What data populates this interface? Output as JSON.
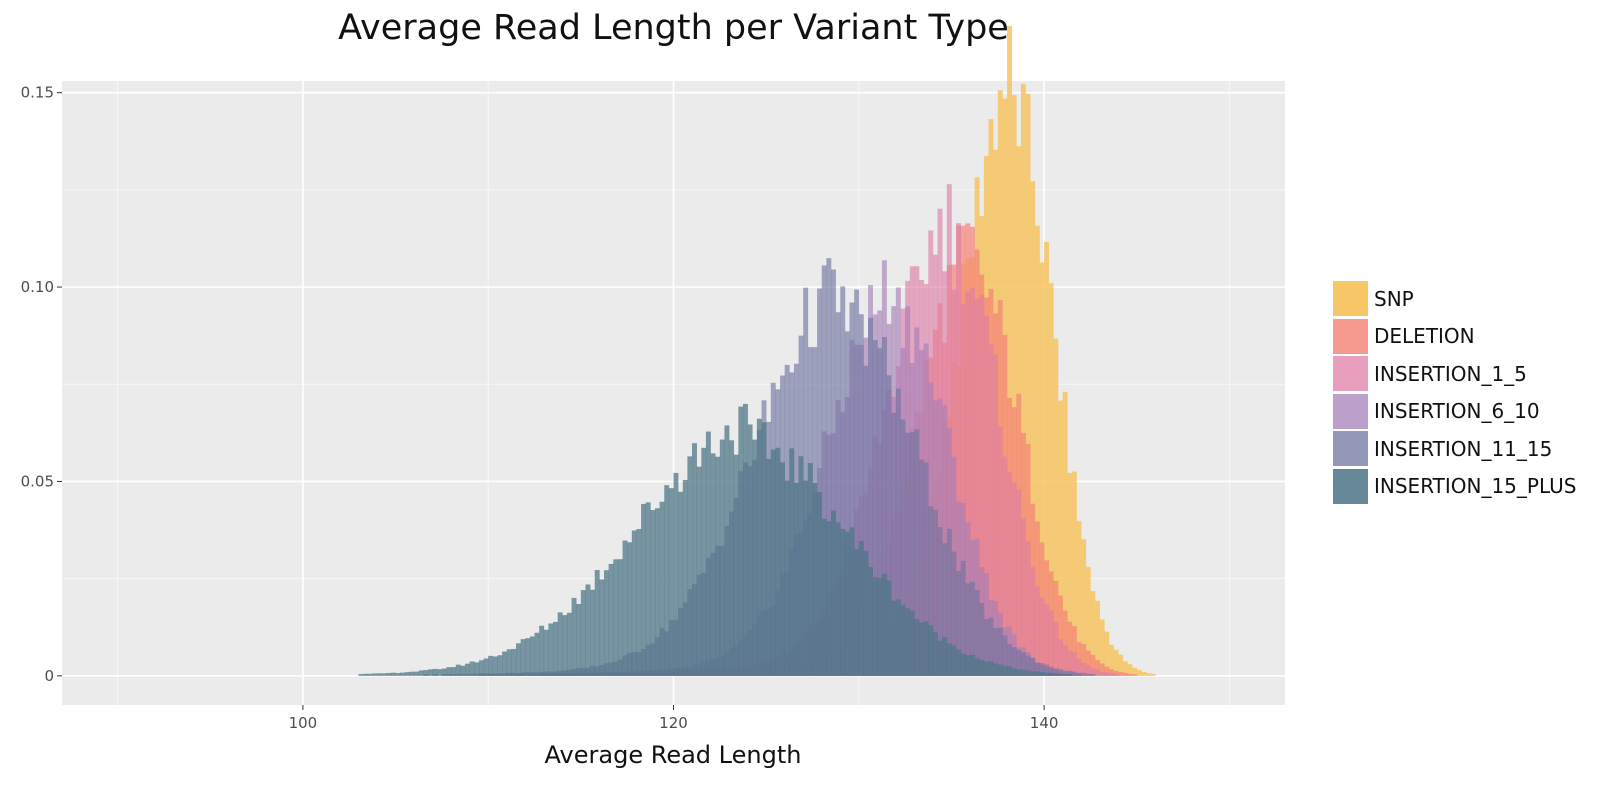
{
  "chart_data": {
    "type": "histogram",
    "title": "Average Read Length per Variant Type",
    "xlabel": "Average Read Length",
    "ylabel": "",
    "xlim": [
      87,
      153
    ],
    "ylim": [
      -0.0075,
      0.153
    ],
    "x_ticks": [
      100,
      120,
      140
    ],
    "x_tick_labels": [
      "100",
      "120",
      "140"
    ],
    "y_ticks": [
      0,
      0.05,
      0.1,
      0.15
    ],
    "y_tick_labels": [
      "0",
      "0.05",
      "0.10",
      "0.15"
    ],
    "grid": true,
    "legend_position": "right",
    "background": "#ebebeb",
    "bin_width": 0.25,
    "series": [
      {
        "name": "SNP",
        "color": "#f6c462",
        "opacity": 0.85,
        "peak_x": 138.3,
        "peak_y": 0.145,
        "sd_left": 2.7,
        "sd_right": 2.25,
        "tail_start": 120
      },
      {
        "name": "DELETION",
        "color": "#f48579",
        "opacity": 0.72,
        "peak_x": 136.2,
        "peak_y": 0.103,
        "sd_left": 3.0,
        "sd_right": 2.6,
        "tail_start": 100
      },
      {
        "name": "INSERTION_1_5",
        "color": "#de7da6",
        "opacity": 0.62,
        "peak_x": 135.0,
        "peak_y": 0.11,
        "sd_left": 3.4,
        "sd_right": 2.7,
        "tail_start": 100
      },
      {
        "name": "INSERTION_6_10",
        "color": "#a47eb7",
        "opacity": 0.62,
        "peak_x": 132.0,
        "peak_y": 0.094,
        "sd_left": 3.6,
        "sd_right": 3.0,
        "tail_start": 98
      },
      {
        "name": "INSERTION_11_15",
        "color": "#6d739f",
        "opacity": 0.62,
        "peak_x": 129.0,
        "peak_y": 0.093,
        "sd_left": 4.5,
        "sd_right": 4.2,
        "tail_start": 95
      },
      {
        "name": "INSERTION_15_PLUS",
        "color": "#4e7587",
        "opacity": 0.74,
        "peak_x": 124.0,
        "peak_y": 0.06,
        "sd_left": 6.0,
        "sd_right": 5.5,
        "tail_start": 88
      }
    ]
  }
}
